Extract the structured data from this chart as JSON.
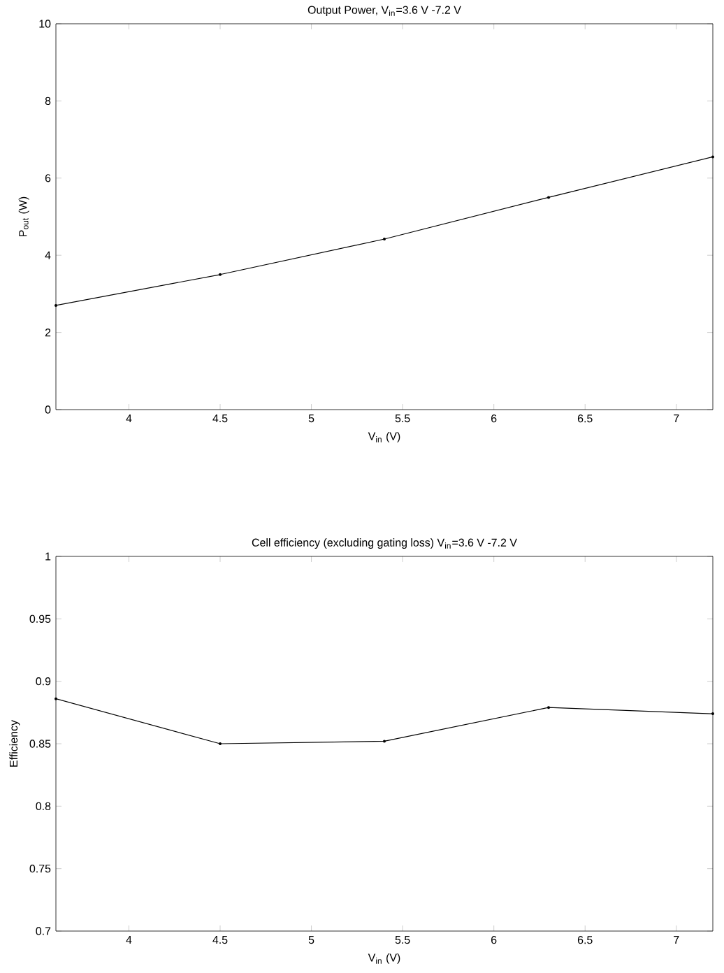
{
  "chart_data": [
    {
      "type": "line",
      "title": "Output Power, V$_{in}$=3.6 V -7.2 V",
      "xlabel": "V$_{in}$ (V)",
      "ylabel": "P$_{out}$ (W)",
      "x": [
        3.6,
        4.5,
        5.4,
        6.3,
        7.2
      ],
      "series": [
        {
          "color": "#000000",
          "values": [
            2.7,
            3.5,
            4.42,
            5.5,
            6.55
          ]
        }
      ],
      "xlim": [
        3.6,
        7.2
      ],
      "ylim": [
        0,
        10
      ],
      "xticks": [
        4,
        4.5,
        5,
        5.5,
        6,
        6.5,
        7
      ],
      "yticks": [
        0,
        2,
        4,
        6,
        8,
        10
      ],
      "marker": "circle",
      "line_style": "solid"
    },
    {
      "type": "line",
      "title": "Cell efficiency (excluding gating loss) V$_{in}$=3.6 V -7.2 V",
      "xlabel": "V$_{in}$ (V)",
      "ylabel": "Efficiency",
      "x": [
        3.6,
        4.5,
        5.4,
        6.3,
        7.2
      ],
      "series": [
        {
          "color": "#000000",
          "values": [
            0.886,
            0.85,
            0.852,
            0.879,
            0.874
          ]
        }
      ],
      "xlim": [
        3.6,
        7.2
      ],
      "ylim": [
        0.7,
        1
      ],
      "xticks": [
        4,
        4.5,
        5,
        5.5,
        6,
        6.5,
        7
      ],
      "yticks": [
        0.7,
        0.75,
        0.8,
        0.85,
        0.9,
        0.95,
        1
      ],
      "marker": "circle",
      "line_style": "solid"
    }
  ]
}
